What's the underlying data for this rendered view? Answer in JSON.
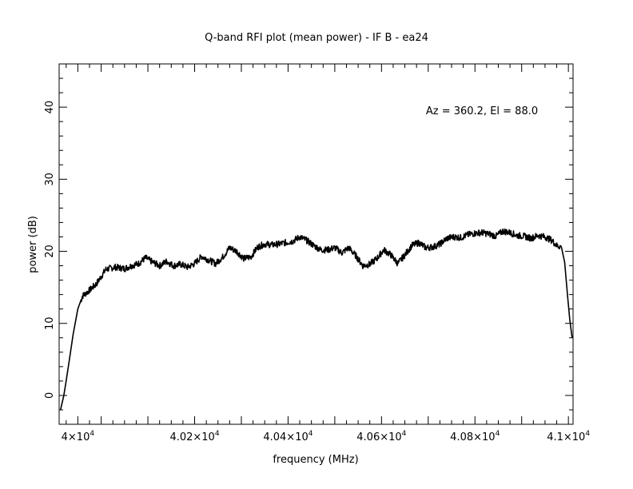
{
  "chart_data": {
    "type": "line",
    "title": "Q-band RFI plot (mean power) - IF B - ea24",
    "xlabel": "frequency (MHz)",
    "ylabel": "power (dB)",
    "annotation": "Az = 360.2, El = 88.0",
    "xlim": [
      39910,
      41010
    ],
    "ylim": [
      -4,
      46
    ],
    "grid": false,
    "line_color": "#000000",
    "x_ticks": [
      {
        "value": 39950,
        "mantissa": "4",
        "exponent": "4"
      },
      {
        "value": 40200,
        "mantissa": "4.02",
        "exponent": "4"
      },
      {
        "value": 40400,
        "mantissa": "4.04",
        "exponent": "4"
      },
      {
        "value": 40600,
        "mantissa": "4.06",
        "exponent": "4"
      },
      {
        "value": 40800,
        "mantissa": "4.08",
        "exponent": "4"
      },
      {
        "value": 41000,
        "mantissa": "4.1",
        "exponent": "4"
      }
    ],
    "y_ticks": [
      {
        "value": 0,
        "label": "0"
      },
      {
        "value": 10,
        "label": "10"
      },
      {
        "value": 20,
        "label": "20"
      },
      {
        "value": 30,
        "label": "30"
      },
      {
        "value": 40,
        "label": "40"
      }
    ],
    "series": [
      {
        "x": [
          39913,
          39920,
          39925,
          39932,
          39940,
          39950,
          39960,
          39975,
          39990,
          40010,
          40030,
          40050,
          40065,
          40080,
          40095,
          40110,
          40125,
          40140,
          40155,
          40170,
          40185,
          40200,
          40215,
          40230,
          40245,
          40260,
          40275,
          40290,
          40305,
          40320,
          40335,
          40350,
          40365,
          40380,
          40395,
          40410,
          40425,
          40440,
          40455,
          40470,
          40485,
          40500,
          40515,
          40530,
          40545,
          40560,
          40575,
          40590,
          40605,
          40620,
          40635,
          40650,
          40665,
          40680,
          40695,
          40710,
          40725,
          40740,
          40755,
          40770,
          40785,
          40800,
          40815,
          40830,
          40845,
          40860,
          40875,
          40890,
          40905,
          40920,
          40935,
          40950,
          40965,
          40975,
          40985,
          40992,
          40998,
          41003,
          41008
        ],
        "y": [
          -2,
          0,
          2,
          5,
          8.5,
          12,
          13.8,
          14.6,
          15.5,
          17.5,
          17.8,
          17.6,
          18.0,
          18.3,
          19.1,
          18.5,
          18.0,
          18.6,
          18.0,
          18.2,
          17.8,
          18.3,
          19.3,
          18.8,
          18.3,
          19.2,
          20.5,
          20.0,
          19.0,
          19.2,
          20.6,
          21.0,
          20.9,
          21.0,
          21.2,
          21.4,
          22.0,
          21.5,
          20.8,
          20.2,
          20.2,
          20.5,
          19.8,
          20.5,
          19.4,
          18.0,
          18.2,
          19.0,
          20.2,
          19.5,
          18.3,
          19.5,
          20.8,
          21.2,
          20.5,
          20.6,
          21.0,
          21.8,
          22.0,
          21.9,
          22.3,
          22.5,
          22.6,
          22.4,
          22.1,
          22.8,
          22.6,
          22.2,
          22.1,
          21.8,
          22.2,
          22.0,
          21.5,
          20.8,
          20.6,
          18.5,
          14.0,
          10.5,
          8.0
        ]
      }
    ]
  }
}
